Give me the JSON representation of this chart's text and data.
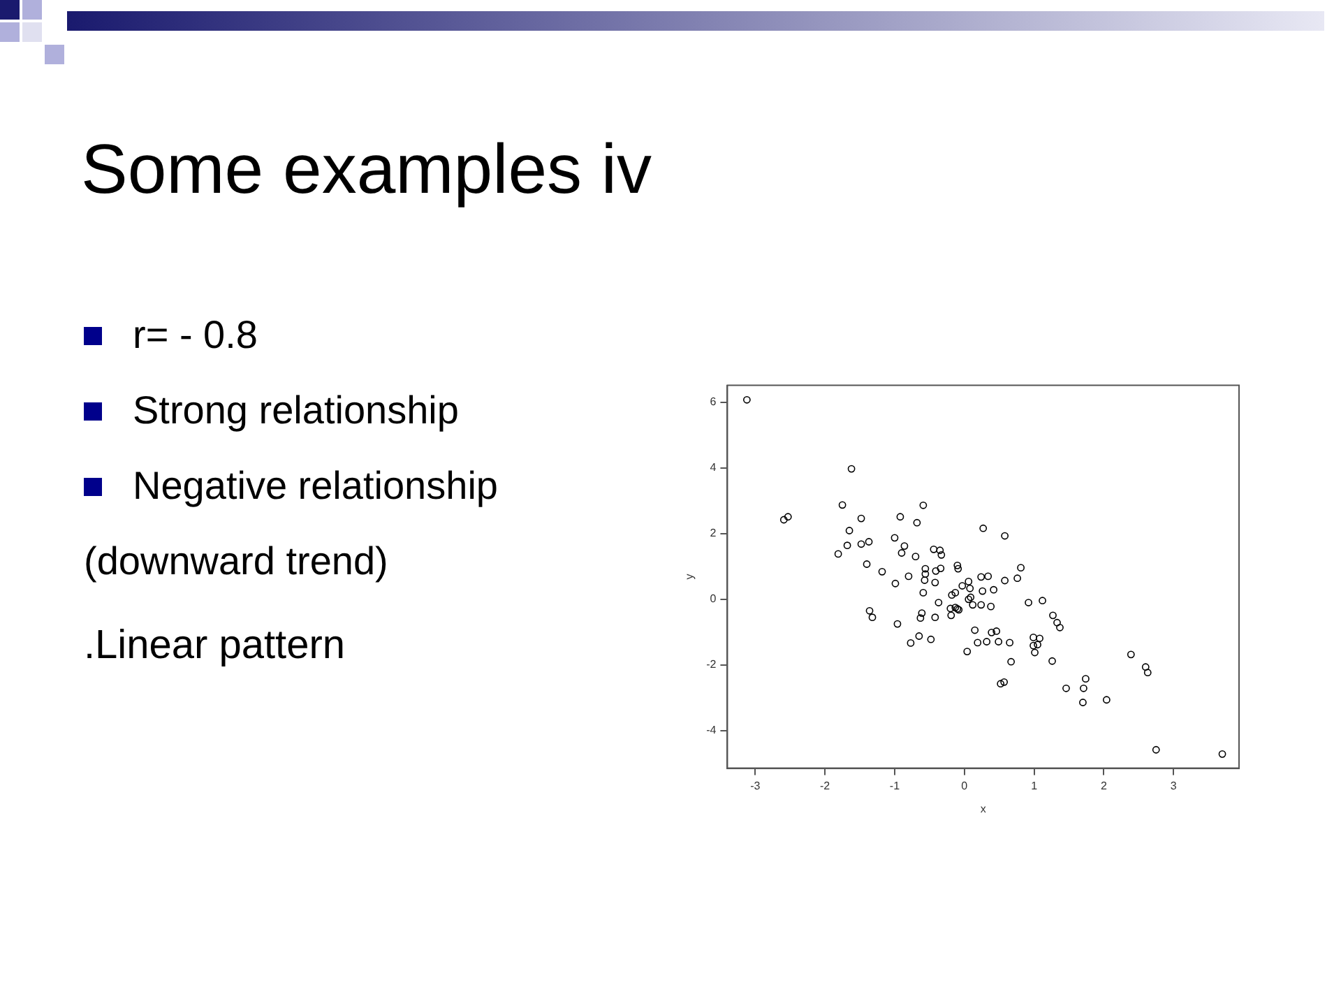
{
  "chart_data": {
    "type": "scatter",
    "title": "Some examples iv",
    "xlabel": "x",
    "ylabel": "y",
    "annotations": [
      "r= - 0.8",
      "Strong relationship",
      "Negative relationship",
      "(downward trend)",
      ".Linear pattern"
    ],
    "xlim": [
      -3.4,
      3.94
    ],
    "ylim": [
      -5.14,
      6.51
    ],
    "xticks": [
      -3,
      -2,
      -1,
      0,
      1,
      2,
      3
    ],
    "yticks": [
      -4,
      -2,
      0,
      2,
      4,
      6
    ],
    "grid": false,
    "legend": false,
    "marker": "circle",
    "series": [
      {
        "color": "#000000",
        "x": [
          -3.12,
          -1.62,
          -2.59,
          -2.53,
          -1.75,
          -1.48,
          -1.65,
          -1.68,
          -1.81,
          -1.48,
          -1.37,
          -1.4,
          -1.18,
          -1.0,
          -0.92,
          -0.9,
          -0.86,
          -0.68,
          -0.59,
          -0.7,
          -0.8,
          -0.99,
          -1.36,
          -1.32,
          -0.96,
          -0.77,
          -0.65,
          -0.48,
          -0.63,
          -0.61,
          -0.59,
          -0.57,
          -0.56,
          -0.56,
          -0.44,
          -0.35,
          -0.33,
          -0.34,
          -0.41,
          -0.42,
          -0.37,
          -0.42,
          -0.1,
          -0.09,
          -0.2,
          -0.19,
          -0.13,
          -0.1,
          -0.08,
          -0.18,
          -0.13,
          -0.03,
          0.06,
          0.08,
          0.06,
          0.09,
          0.12,
          0.04,
          0.15,
          0.19,
          0.24,
          0.34,
          0.26,
          0.24,
          0.27,
          0.38,
          0.42,
          0.39,
          0.46,
          0.32,
          0.49,
          0.58,
          0.58,
          0.76,
          0.81,
          0.65,
          0.67,
          0.52,
          0.57,
          0.92,
          1.12,
          0.99,
          0.99,
          1.01,
          1.05,
          1.08,
          1.27,
          1.33,
          1.37,
          1.26,
          1.46,
          1.74,
          1.71,
          1.7,
          2.04,
          2.39,
          2.6,
          2.63,
          2.75,
          3.7
        ],
        "values": [
          6.07,
          3.97,
          2.42,
          2.51,
          2.87,
          2.46,
          2.09,
          1.64,
          1.38,
          1.68,
          1.75,
          1.07,
          0.84,
          1.87,
          2.51,
          1.41,
          1.62,
          2.33,
          2.86,
          1.3,
          0.7,
          0.48,
          -0.35,
          -0.55,
          -0.75,
          -1.33,
          -1.12,
          -1.22,
          -0.57,
          -0.42,
          0.2,
          0.58,
          0.77,
          0.93,
          1.52,
          1.49,
          1.35,
          0.94,
          0.86,
          0.51,
          -0.1,
          -0.55,
          1.03,
          0.93,
          -0.28,
          -0.49,
          -0.25,
          -0.29,
          -0.32,
          0.13,
          0.2,
          0.41,
          0.54,
          0.33,
          0.0,
          0.06,
          -0.17,
          -1.59,
          -0.94,
          -1.32,
          0.68,
          0.7,
          0.25,
          -0.17,
          2.16,
          -0.22,
          0.29,
          -1.01,
          -0.97,
          -1.29,
          -1.29,
          1.93,
          0.57,
          0.64,
          0.96,
          -1.32,
          -1.9,
          -2.57,
          -2.52,
          -0.1,
          -0.04,
          -1.16,
          -1.41,
          -1.62,
          -1.38,
          -1.19,
          -0.49,
          -0.71,
          -0.86,
          -1.88,
          -2.71,
          -2.42,
          -2.71,
          -3.14,
          -3.06,
          -1.68,
          -2.06,
          -2.23,
          -4.58,
          -4.71
        ]
      }
    ]
  }
}
